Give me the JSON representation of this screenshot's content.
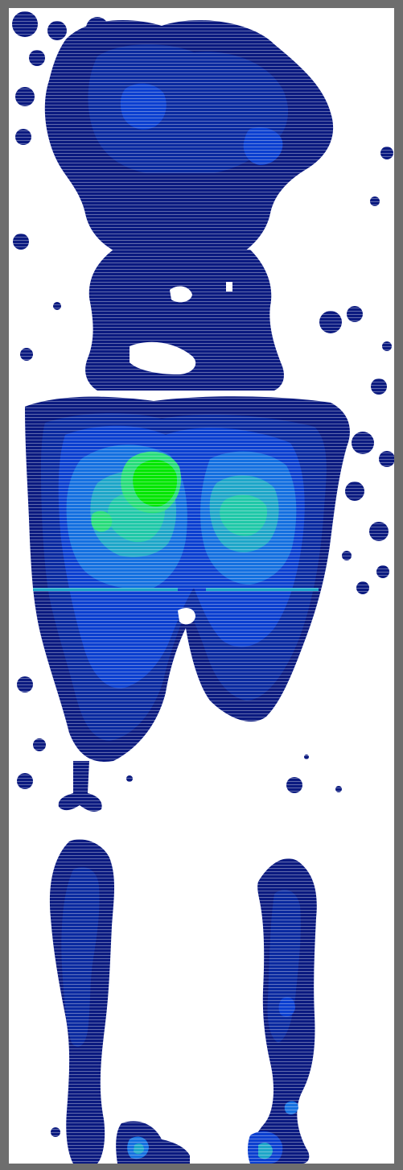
{
  "image": {
    "kind": "pressure-heatmap",
    "background_color": "#ffffff",
    "frame_color": "#6e6e6e",
    "palette": {
      "level_1": "#0b1a80",
      "level_2": "#0a2aa0",
      "level_3": "#0b3fd0",
      "level_4": "#1470e0",
      "level_5": "#1ea6c8",
      "level_6": "#20c8a8",
      "level_7": "#28dc7a",
      "level_8": "#00e600"
    },
    "scanline_color": "#ffffff"
  }
}
